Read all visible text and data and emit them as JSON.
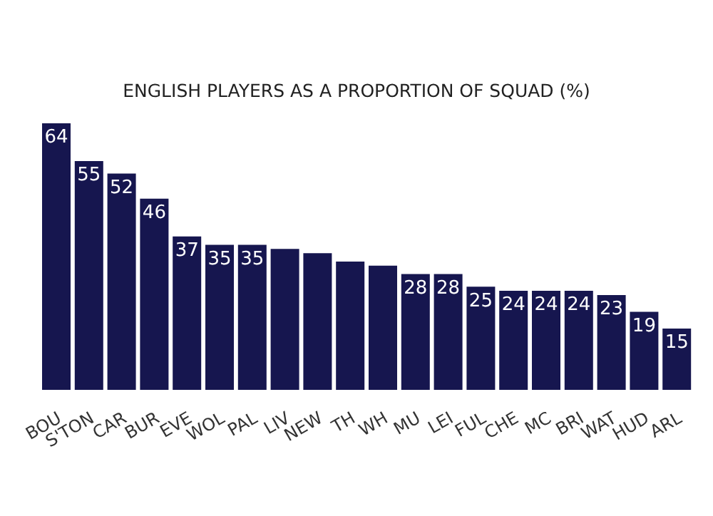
{
  "chart_data": {
    "type": "bar",
    "title": "ENGLISH PLAYERS AS A PROPORTION OF SQUAD (%)",
    "categories": [
      "BOU",
      "S'TON",
      "CAR",
      "BUR",
      "EVE",
      "WOL",
      "PAL",
      "LIV",
      "NEW",
      "TH",
      "WH",
      "MU",
      "LEI",
      "FUL",
      "CHE",
      "MC",
      "BRI",
      "WAT",
      "HUD",
      "ARL"
    ],
    "values": [
      64,
      55,
      52,
      46,
      37,
      35,
      35,
      34,
      33,
      31,
      30,
      28,
      28,
      25,
      24,
      24,
      24,
      23,
      19,
      15
    ],
    "value_labels": [
      "64",
      "55",
      "52",
      "46",
      "37",
      "35",
      "35",
      null,
      null,
      null,
      null,
      "28",
      "28",
      "25",
      "24",
      "24",
      "24",
      "23",
      "19",
      "15"
    ],
    "color": "#16164f"
  }
}
